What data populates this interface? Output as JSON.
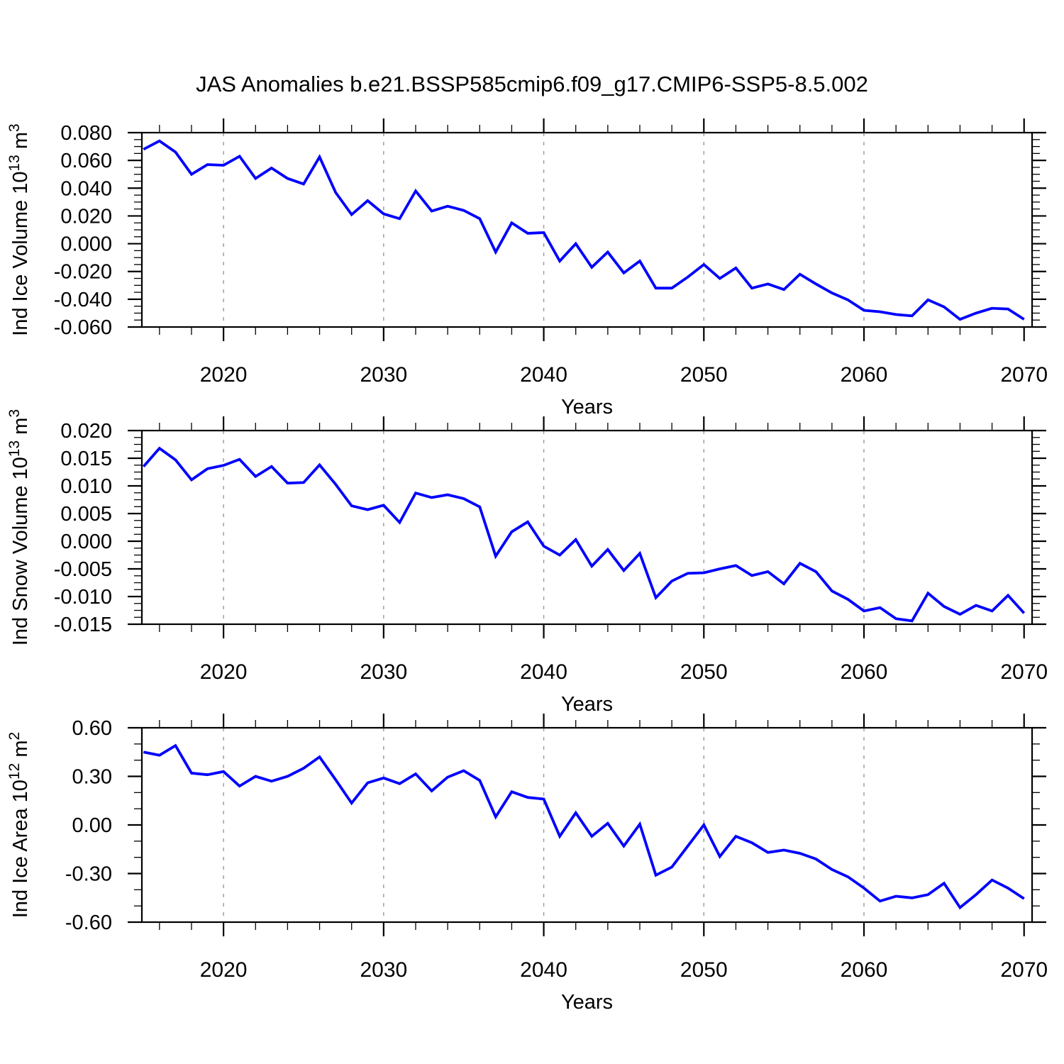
{
  "title": "JAS Anomalies b.e21.BSSP585cmip6.f09_g17.CMIP6-SSP5-8.5.002",
  "colors": {
    "line": "#0000ff",
    "grid": "#999999",
    "frame": "#000000",
    "text": "#000000",
    "background": "#ffffff"
  },
  "chart_data": [
    {
      "type": "line",
      "series_name": "Ind Ice Volume anomaly",
      "xlabel": "Years",
      "ylabel": "Ind Ice Volume 10^13 m^3",
      "ylabel_parts": [
        {
          "t": "Ind Ice Volume 10",
          "sup": false
        },
        {
          "t": "13",
          "sup": true
        },
        {
          "t": " m",
          "sup": false
        },
        {
          "t": "3",
          "sup": true
        }
      ],
      "xlim": [
        2014.9,
        2070.5
      ],
      "ylim": [
        -0.06,
        0.08
      ],
      "xticks": [
        2020,
        2030,
        2040,
        2050,
        2060,
        2070
      ],
      "xtick_labels": [
        "2020",
        "2030",
        "2040",
        "2050",
        "2060",
        "2070"
      ],
      "x_minor_step": 2,
      "yticks": [
        0.08,
        0.06,
        0.04,
        0.02,
        0.0,
        -0.02,
        -0.04,
        -0.06
      ],
      "ytick_labels": [
        "0.080",
        "0.060",
        "0.040",
        "0.020",
        "0.000",
        "-0.020",
        "-0.040",
        "-0.060"
      ],
      "y_minor_step": 0.005,
      "grid_x": [
        2020,
        2030,
        2040,
        2050,
        2060
      ],
      "grid_style": "dashed-vertical",
      "x": [
        2015,
        2016,
        2017,
        2018,
        2019,
        2020,
        2021,
        2022,
        2023,
        2024,
        2025,
        2026,
        2027,
        2028,
        2029,
        2030,
        2031,
        2032,
        2033,
        2034,
        2035,
        2036,
        2037,
        2038,
        2039,
        2040,
        2041,
        2042,
        2043,
        2044,
        2045,
        2046,
        2047,
        2048,
        2049,
        2050,
        2051,
        2052,
        2053,
        2054,
        2055,
        2056,
        2057,
        2058,
        2059,
        2060,
        2061,
        2062,
        2063,
        2064,
        2065,
        2066,
        2067,
        2068,
        2069,
        2070
      ],
      "values": [
        0.068,
        0.074,
        0.066,
        0.05,
        0.057,
        0.0565,
        0.063,
        0.047,
        0.0545,
        0.047,
        0.043,
        0.0625,
        0.037,
        0.021,
        0.031,
        0.0215,
        0.018,
        0.038,
        0.0235,
        0.027,
        0.024,
        0.018,
        -0.006,
        0.015,
        0.0075,
        0.008,
        -0.0125,
        0.0,
        -0.017,
        -0.006,
        -0.021,
        -0.0125,
        -0.032,
        -0.032,
        -0.024,
        -0.015,
        -0.025,
        -0.0175,
        -0.032,
        -0.029,
        -0.033,
        -0.022,
        -0.029,
        -0.0355,
        -0.0405,
        -0.048,
        -0.049,
        -0.051,
        -0.052,
        -0.0405,
        -0.0455,
        -0.0545,
        -0.05,
        -0.0465,
        -0.047,
        -0.0545
      ]
    },
    {
      "type": "line",
      "series_name": "Ind Snow Volume anomaly",
      "xlabel": "Years",
      "ylabel": "Ind Snow Volume 10^13 m^3",
      "ylabel_parts": [
        {
          "t": "Ind Snow Volume 10",
          "sup": false
        },
        {
          "t": "13",
          "sup": true
        },
        {
          "t": " m",
          "sup": false
        },
        {
          "t": "3",
          "sup": true
        }
      ],
      "xlim": [
        2014.9,
        2070.5
      ],
      "ylim": [
        -0.015,
        0.02
      ],
      "xticks": [
        2020,
        2030,
        2040,
        2050,
        2060,
        2070
      ],
      "xtick_labels": [
        "2020",
        "2030",
        "2040",
        "2050",
        "2060",
        "2070"
      ],
      "x_minor_step": 2,
      "yticks": [
        0.02,
        0.015,
        0.01,
        0.005,
        0.0,
        -0.005,
        -0.01,
        -0.015
      ],
      "ytick_labels": [
        "0.020",
        "0.015",
        "0.010",
        "0.005",
        "0.000",
        "-0.005",
        "-0.010",
        "-0.015"
      ],
      "y_minor_step": 0.00125,
      "grid_x": [
        2020,
        2030,
        2040,
        2050,
        2060
      ],
      "grid_style": "dashed-vertical",
      "x": [
        2015,
        2016,
        2017,
        2018,
        2019,
        2020,
        2021,
        2022,
        2023,
        2024,
        2025,
        2026,
        2027,
        2028,
        2029,
        2030,
        2031,
        2032,
        2033,
        2034,
        2035,
        2036,
        2037,
        2038,
        2039,
        2040,
        2041,
        2042,
        2043,
        2044,
        2045,
        2046,
        2047,
        2048,
        2049,
        2050,
        2051,
        2052,
        2053,
        2054,
        2055,
        2056,
        2057,
        2058,
        2059,
        2060,
        2061,
        2062,
        2063,
        2064,
        2065,
        2066,
        2067,
        2068,
        2069,
        2070
      ],
      "values": [
        0.0135,
        0.0168,
        0.0147,
        0.0111,
        0.0131,
        0.0137,
        0.0148,
        0.0117,
        0.0135,
        0.0105,
        0.0106,
        0.0138,
        0.0103,
        0.0064,
        0.0057,
        0.0065,
        0.0034,
        0.0087,
        0.0079,
        0.0084,
        0.0077,
        0.0062,
        -0.0027,
        0.0017,
        0.0035,
        -0.0009,
        -0.0025,
        0.0003,
        -0.0045,
        -0.0015,
        -0.0053,
        -0.0022,
        -0.0102,
        -0.0072,
        -0.0058,
        -0.0057,
        -0.005,
        -0.0044,
        -0.0062,
        -0.0055,
        -0.0077,
        -0.004,
        -0.0055,
        -0.009,
        -0.0105,
        -0.0126,
        -0.012,
        -0.014,
        -0.0144,
        -0.0094,
        -0.0118,
        -0.0132,
        -0.0116,
        -0.0126,
        -0.0098,
        -0.013
      ]
    },
    {
      "type": "line",
      "series_name": "Ind Ice Area anomaly",
      "xlabel": "Years",
      "ylabel": "Ind Ice Area 10^12 m^2",
      "ylabel_parts": [
        {
          "t": "Ind Ice Area 10",
          "sup": false
        },
        {
          "t": "12",
          "sup": true
        },
        {
          "t": " m",
          "sup": false
        },
        {
          "t": "2",
          "sup": true
        }
      ],
      "xlim": [
        2014.9,
        2070.5
      ],
      "ylim": [
        -0.6,
        0.6
      ],
      "xticks": [
        2020,
        2030,
        2040,
        2050,
        2060,
        2070
      ],
      "xtick_labels": [
        "2020",
        "2030",
        "2040",
        "2050",
        "2060",
        "2070"
      ],
      "x_minor_step": 2,
      "yticks": [
        0.6,
        0.3,
        0.0,
        -0.3,
        -0.6
      ],
      "ytick_labels": [
        "0.60",
        "0.30",
        "0.00",
        "-0.30",
        "-0.60"
      ],
      "y_minor_step": 0.1,
      "grid_x": [
        2020,
        2030,
        2040,
        2050,
        2060
      ],
      "grid_style": "dashed-vertical",
      "x": [
        2015,
        2016,
        2017,
        2018,
        2019,
        2020,
        2021,
        2022,
        2023,
        2024,
        2025,
        2026,
        2027,
        2028,
        2029,
        2030,
        2031,
        2032,
        2033,
        2034,
        2035,
        2036,
        2037,
        2038,
        2039,
        2040,
        2041,
        2042,
        2043,
        2044,
        2045,
        2046,
        2047,
        2048,
        2049,
        2050,
        2051,
        2052,
        2053,
        2054,
        2055,
        2056,
        2057,
        2058,
        2059,
        2060,
        2061,
        2062,
        2063,
        2064,
        2065,
        2066,
        2067,
        2068,
        2069,
        2070
      ],
      "values": [
        0.45,
        0.43,
        0.49,
        0.32,
        0.31,
        0.33,
        0.24,
        0.3,
        0.27,
        0.3,
        0.35,
        0.42,
        0.28,
        0.135,
        0.26,
        0.29,
        0.255,
        0.315,
        0.21,
        0.295,
        0.335,
        0.275,
        0.05,
        0.205,
        0.17,
        0.16,
        -0.07,
        0.075,
        -0.07,
        0.01,
        -0.13,
        0.005,
        -0.31,
        -0.26,
        -0.13,
        0.0,
        -0.195,
        -0.07,
        -0.11,
        -0.17,
        -0.155,
        -0.175,
        -0.21,
        -0.275,
        -0.32,
        -0.39,
        -0.47,
        -0.44,
        -0.45,
        -0.43,
        -0.36,
        -0.51,
        -0.43,
        -0.34,
        -0.39,
        -0.455
      ]
    }
  ]
}
